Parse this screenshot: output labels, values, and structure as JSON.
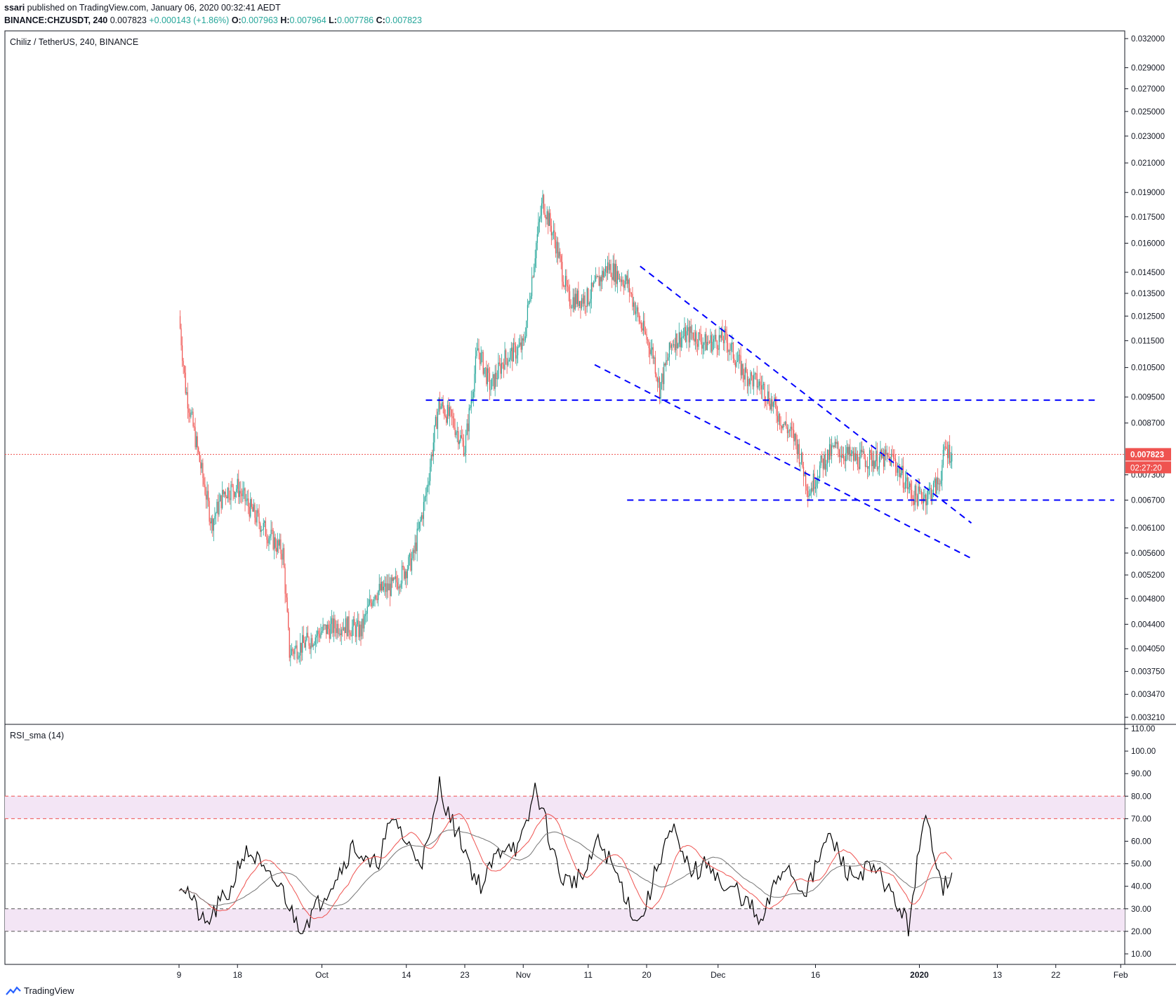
{
  "header": {
    "publisher": "ssari",
    "published_text": " published on TradingView.com, January 06, 2020 00:32:41 AEDT",
    "symbol": "BINANCE:CHZUSDT, 240",
    "last": "0.007823",
    "change": "+0.000143 (+1.86%)",
    "o_label": "O:",
    "o": "0.007963",
    "h_label": "H:",
    "h": "0.007964",
    "l_label": "L:",
    "l": "0.007786",
    "c_label": "C:",
    "c": "0.007823"
  },
  "pane_title": "Chiliz / TetherUS, 240, BINANCE",
  "rsi_title": "RSI_sma (14)",
  "price_badge": "0.007823",
  "countdown_badge": "02:27:20",
  "footer_logo": "TradingView",
  "colors": {
    "up": "#26a69a",
    "down": "#ef5350",
    "trendline": "#0000ff",
    "rsi": "#000000",
    "rsi_sma": "#ef5350",
    "band": "#f3e5f5"
  },
  "chart_data": [
    {
      "type": "candlestick",
      "title": "Chiliz / TetherUS, 240, BINANCE",
      "price_ticks": [
        "0.032000",
        "0.029000",
        "0.027000",
        "0.025000",
        "0.023000",
        "0.021000",
        "0.019000",
        "0.017500",
        "0.016000",
        "0.014500",
        "0.013500",
        "0.012500",
        "0.011500",
        "0.010500",
        "0.009500",
        "0.008700",
        "0.007300",
        "0.006700",
        "0.006100",
        "0.005600",
        "0.005200",
        "0.004800",
        "0.004400",
        "0.004050",
        "0.003750",
        "0.003470",
        "0.003210"
      ],
      "date_ticks": [
        "9",
        "18",
        "Oct",
        "14",
        "23",
        "Nov",
        "11",
        "20",
        "Dec",
        "16",
        "2020",
        "13",
        "22",
        "Feb"
      ],
      "last_price": 0.007823,
      "price_path": [
        {
          "date": "2019-09-09",
          "close": 0.0125
        },
        {
          "date": "2019-09-10",
          "close": 0.0098
        },
        {
          "date": "2019-09-12",
          "close": 0.0078
        },
        {
          "date": "2019-09-14",
          "close": 0.0062
        },
        {
          "date": "2019-09-16",
          "close": 0.0069
        },
        {
          "date": "2019-09-18",
          "close": 0.007
        },
        {
          "date": "2019-09-20",
          "close": 0.0065
        },
        {
          "date": "2019-09-22",
          "close": 0.0061
        },
        {
          "date": "2019-09-25",
          "close": 0.0056
        },
        {
          "date": "2019-09-26",
          "close": 0.004
        },
        {
          "date": "2019-09-28",
          "close": 0.0041
        },
        {
          "date": "2019-10-01",
          "close": 0.0043
        },
        {
          "date": "2019-10-04",
          "close": 0.0044
        },
        {
          "date": "2019-10-07",
          "close": 0.0043
        },
        {
          "date": "2019-10-09",
          "close": 0.0049
        },
        {
          "date": "2019-10-12",
          "close": 0.005
        },
        {
          "date": "2019-10-15",
          "close": 0.0055
        },
        {
          "date": "2019-10-17",
          "close": 0.0068
        },
        {
          "date": "2019-10-19",
          "close": 0.0093
        },
        {
          "date": "2019-10-21",
          "close": 0.0088
        },
        {
          "date": "2019-10-23",
          "close": 0.008
        },
        {
          "date": "2019-10-25",
          "close": 0.0112
        },
        {
          "date": "2019-10-27",
          "close": 0.0098
        },
        {
          "date": "2019-10-29",
          "close": 0.0108
        },
        {
          "date": "2019-11-01",
          "close": 0.0113
        },
        {
          "date": "2019-11-03",
          "close": 0.016
        },
        {
          "date": "2019-11-04",
          "close": 0.0185
        },
        {
          "date": "2019-11-06",
          "close": 0.016
        },
        {
          "date": "2019-11-08",
          "close": 0.0132
        },
        {
          "date": "2019-11-11",
          "close": 0.0133
        },
        {
          "date": "2019-11-14",
          "close": 0.0148
        },
        {
          "date": "2019-11-17",
          "close": 0.014
        },
        {
          "date": "2019-11-19",
          "close": 0.0122
        },
        {
          "date": "2019-11-21",
          "close": 0.011
        },
        {
          "date": "2019-11-22",
          "close": 0.0098
        },
        {
          "date": "2019-11-24",
          "close": 0.0115
        },
        {
          "date": "2019-11-27",
          "close": 0.0118
        },
        {
          "date": "2019-11-29",
          "close": 0.0114
        },
        {
          "date": "2019-12-02",
          "close": 0.0116
        },
        {
          "date": "2019-12-05",
          "close": 0.0103
        },
        {
          "date": "2019-12-08",
          "close": 0.0098
        },
        {
          "date": "2019-12-11",
          "close": 0.0087
        },
        {
          "date": "2019-12-13",
          "close": 0.0082
        },
        {
          "date": "2019-12-15",
          "close": 0.0069
        },
        {
          "date": "2019-12-17",
          "close": 0.0076
        },
        {
          "date": "2019-12-19",
          "close": 0.008
        },
        {
          "date": "2019-12-22",
          "close": 0.0077
        },
        {
          "date": "2019-12-25",
          "close": 0.0077
        },
        {
          "date": "2019-12-28",
          "close": 0.0077
        },
        {
          "date": "2019-12-31",
          "close": 0.0068
        },
        {
          "date": "2020-01-02",
          "close": 0.0068
        },
        {
          "date": "2020-01-04",
          "close": 0.0071
        },
        {
          "date": "2020-01-05",
          "close": 0.008
        },
        {
          "date": "2020-01-06",
          "close": 0.007823
        }
      ],
      "drawings": [
        {
          "kind": "horizontal-dashed",
          "from": "2019-10-17",
          "to": "2020-01-28",
          "price": 0.0094
        },
        {
          "kind": "horizontal-dashed",
          "from": "2019-11-17",
          "to": "2020-01-31",
          "price": 0.0067
        },
        {
          "kind": "trendline-dashed",
          "from": {
            "date": "2019-11-19",
            "price": 0.0148
          },
          "to": {
            "date": "2020-01-09",
            "price": 0.0062
          }
        },
        {
          "kind": "trendline-dashed",
          "from": {
            "date": "2019-11-12",
            "price": 0.0106
          },
          "to": {
            "date": "2020-01-09",
            "price": 0.0055
          }
        }
      ]
    },
    {
      "type": "line",
      "title": "RSI_sma (14)",
      "ylim": [
        10,
        110
      ],
      "y_ticks": [
        "110.00",
        "100.00",
        "90.00",
        "80.00",
        "70.00",
        "60.00",
        "50.00",
        "40.00",
        "30.00",
        "20.00",
        "10.00"
      ],
      "bands": [
        [
          70,
          80
        ],
        [
          20,
          30
        ]
      ],
      "midline": 50,
      "series": [
        {
          "values": [
            42,
            38,
            30,
            22,
            28,
            34,
            38,
            52,
            55,
            52,
            44,
            42,
            38,
            28,
            22,
            26,
            32,
            38,
            44,
            50,
            58,
            54,
            48,
            52,
            64,
            70,
            60,
            55,
            52,
            62,
            86,
            72,
            64,
            56,
            44,
            40,
            50,
            56,
            60,
            56,
            66,
            84,
            72,
            56,
            44,
            42,
            44,
            46,
            60,
            56,
            48,
            40,
            30,
            24,
            34,
            48,
            60,
            64,
            52,
            48,
            46,
            52,
            44,
            36,
            40,
            34,
            30,
            22,
            34,
            44,
            50,
            42,
            38,
            44,
            56,
            62,
            54,
            46,
            44,
            48,
            46,
            44,
            36,
            30,
            22,
            50,
            70,
            56,
            40,
            46
          ]
        }
      ]
    }
  ]
}
